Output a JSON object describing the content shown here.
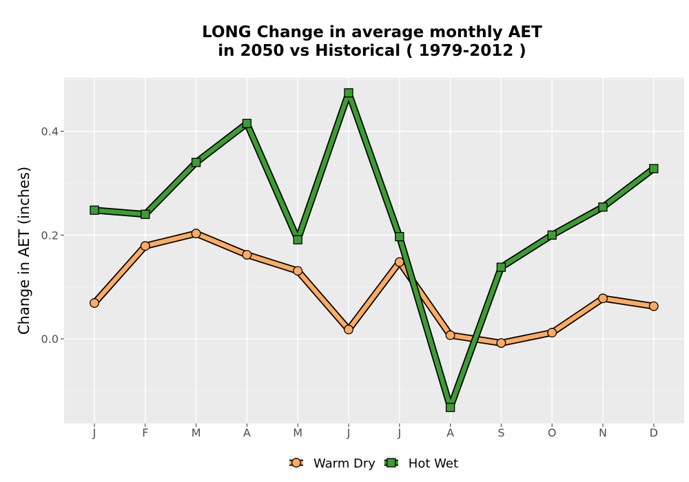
{
  "chart_data": {
    "type": "line",
    "title_lines": [
      "LONG  Change in average monthly AET",
      "in 2050 vs Historical ( 1979-2012 )"
    ],
    "xlabel": "",
    "ylabel": "Change in AET (inches)",
    "categories": [
      "J",
      "F",
      "M",
      "A",
      "M",
      "J",
      "J",
      "A",
      "S",
      "O",
      "N",
      "D"
    ],
    "yticks": [
      0.0,
      0.2,
      0.4
    ],
    "ytick_labels": [
      "0.0",
      "0.2",
      "0.4"
    ],
    "ylim": [
      -0.163,
      0.503
    ],
    "grid": true,
    "legend_position": "bottom",
    "series": [
      {
        "name": "Warm Dry",
        "color": "#fdab63",
        "marker": "circle",
        "values": [
          0.069,
          0.179,
          0.203,
          0.162,
          0.131,
          0.018,
          0.148,
          0.007,
          -0.008,
          0.012,
          0.078,
          0.063
        ]
      },
      {
        "name": "Hot Wet",
        "color": "#3d9c33",
        "marker": "square",
        "values": [
          0.248,
          0.24,
          0.34,
          0.415,
          0.191,
          0.474,
          0.197,
          -0.132,
          0.138,
          0.2,
          0.254,
          0.328
        ]
      }
    ]
  }
}
